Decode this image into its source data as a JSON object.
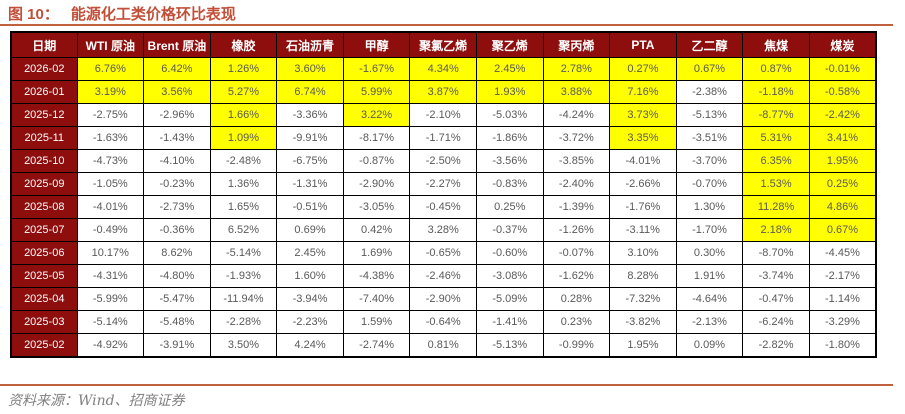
{
  "title": {
    "figure_label": "图 10：",
    "main": "能源化工类价格环比表现"
  },
  "source": {
    "text": "资料来源：Wind、招商证券"
  },
  "colors": {
    "header_bg": "#8E0E0E",
    "highlight": "#FFFF00",
    "accent_line": "#C0603F",
    "title_color": "#C24F38",
    "cell_text": "#595959",
    "border": "#000000"
  },
  "chart_data": {
    "type": "table",
    "title": "图 10：能源化工类价格环比表现",
    "columns": [
      "日期",
      "WTI 原油",
      "Brent 原油",
      "橡胶",
      "石油沥青",
      "甲醇",
      "聚氯乙烯",
      "聚乙烯",
      "聚丙烯",
      "PTA",
      "乙二醇",
      "焦煤",
      "煤炭"
    ],
    "rows": [
      {
        "date": "2026-02",
        "values": [
          "6.76%",
          "6.42%",
          "1.26%",
          "3.60%",
          "-1.67%",
          "4.34%",
          "2.45%",
          "2.78%",
          "0.27%",
          "0.67%",
          "0.87%",
          "-0.01%"
        ],
        "highlighted": [
          0,
          1,
          2,
          3,
          4,
          5,
          6,
          7,
          8,
          9,
          10,
          11
        ]
      },
      {
        "date": "2026-01",
        "values": [
          "3.19%",
          "3.56%",
          "5.27%",
          "6.74%",
          "5.99%",
          "3.87%",
          "1.93%",
          "3.88%",
          "7.16%",
          "-2.38%",
          "-1.18%",
          "-0.58%"
        ],
        "highlighted": [
          0,
          1,
          2,
          3,
          4,
          5,
          6,
          7,
          8,
          10,
          11
        ]
      },
      {
        "date": "2025-12",
        "values": [
          "-2.75%",
          "-2.96%",
          "1.66%",
          "-3.36%",
          "3.22%",
          "-2.10%",
          "-5.03%",
          "-4.24%",
          "3.73%",
          "-5.13%",
          "-8.77%",
          "-2.42%"
        ],
        "highlighted": [
          2,
          4,
          8,
          10,
          11
        ]
      },
      {
        "date": "2025-11",
        "values": [
          "-1.63%",
          "-1.43%",
          "1.09%",
          "-9.91%",
          "-8.17%",
          "-1.71%",
          "-1.86%",
          "-3.72%",
          "3.35%",
          "-3.51%",
          "5.31%",
          "3.41%"
        ],
        "highlighted": [
          2,
          8,
          10,
          11
        ]
      },
      {
        "date": "2025-10",
        "values": [
          "-4.73%",
          "-4.10%",
          "-2.48%",
          "-6.75%",
          "-0.87%",
          "-2.50%",
          "-3.56%",
          "-3.85%",
          "-4.01%",
          "-3.70%",
          "6.35%",
          "1.95%"
        ],
        "highlighted": [
          10,
          11
        ]
      },
      {
        "date": "2025-09",
        "values": [
          "-1.05%",
          "-0.23%",
          "1.36%",
          "-1.31%",
          "-2.90%",
          "-2.27%",
          "-0.83%",
          "-2.40%",
          "-2.66%",
          "-0.70%",
          "1.53%",
          "0.25%"
        ],
        "highlighted": [
          10,
          11
        ]
      },
      {
        "date": "2025-08",
        "values": [
          "-4.01%",
          "-2.73%",
          "1.65%",
          "-0.51%",
          "-3.05%",
          "-0.45%",
          "0.25%",
          "-1.39%",
          "-1.76%",
          "1.30%",
          "11.28%",
          "4.86%"
        ],
        "highlighted": [
          10,
          11
        ]
      },
      {
        "date": "2025-07",
        "values": [
          "-0.49%",
          "-0.36%",
          "6.52%",
          "0.69%",
          "0.42%",
          "3.28%",
          "-0.37%",
          "-1.26%",
          "-3.11%",
          "-1.70%",
          "2.18%",
          "0.67%"
        ],
        "highlighted": [
          10,
          11
        ]
      },
      {
        "date": "2025-06",
        "values": [
          "10.17%",
          "8.62%",
          "-5.14%",
          "2.45%",
          "1.69%",
          "-0.65%",
          "-0.60%",
          "-0.07%",
          "3.10%",
          "0.30%",
          "-8.70%",
          "-4.45%"
        ],
        "highlighted": []
      },
      {
        "date": "2025-05",
        "values": [
          "-4.31%",
          "-4.80%",
          "-1.93%",
          "1.60%",
          "-4.38%",
          "-2.46%",
          "-3.08%",
          "-1.62%",
          "8.28%",
          "1.91%",
          "-3.74%",
          "-2.17%"
        ],
        "highlighted": []
      },
      {
        "date": "2025-04",
        "values": [
          "-5.99%",
          "-5.47%",
          "-11.94%",
          "-3.94%",
          "-7.40%",
          "-2.90%",
          "-5.09%",
          "0.28%",
          "-7.32%",
          "-4.64%",
          "-0.47%",
          "-1.14%"
        ],
        "highlighted": []
      },
      {
        "date": "2025-03",
        "values": [
          "-5.14%",
          "-5.48%",
          "-2.28%",
          "-2.23%",
          "1.59%",
          "-0.64%",
          "-1.41%",
          "0.23%",
          "-3.82%",
          "-2.13%",
          "-6.24%",
          "-3.29%"
        ],
        "highlighted": []
      },
      {
        "date": "2025-02",
        "values": [
          "-4.92%",
          "-3.91%",
          "3.50%",
          "4.24%",
          "-2.74%",
          "0.81%",
          "-5.13%",
          "-0.99%",
          "1.95%",
          "0.09%",
          "-2.82%",
          "-1.80%"
        ],
        "highlighted": []
      }
    ],
    "source": "资料来源：Wind、招商证券"
  }
}
